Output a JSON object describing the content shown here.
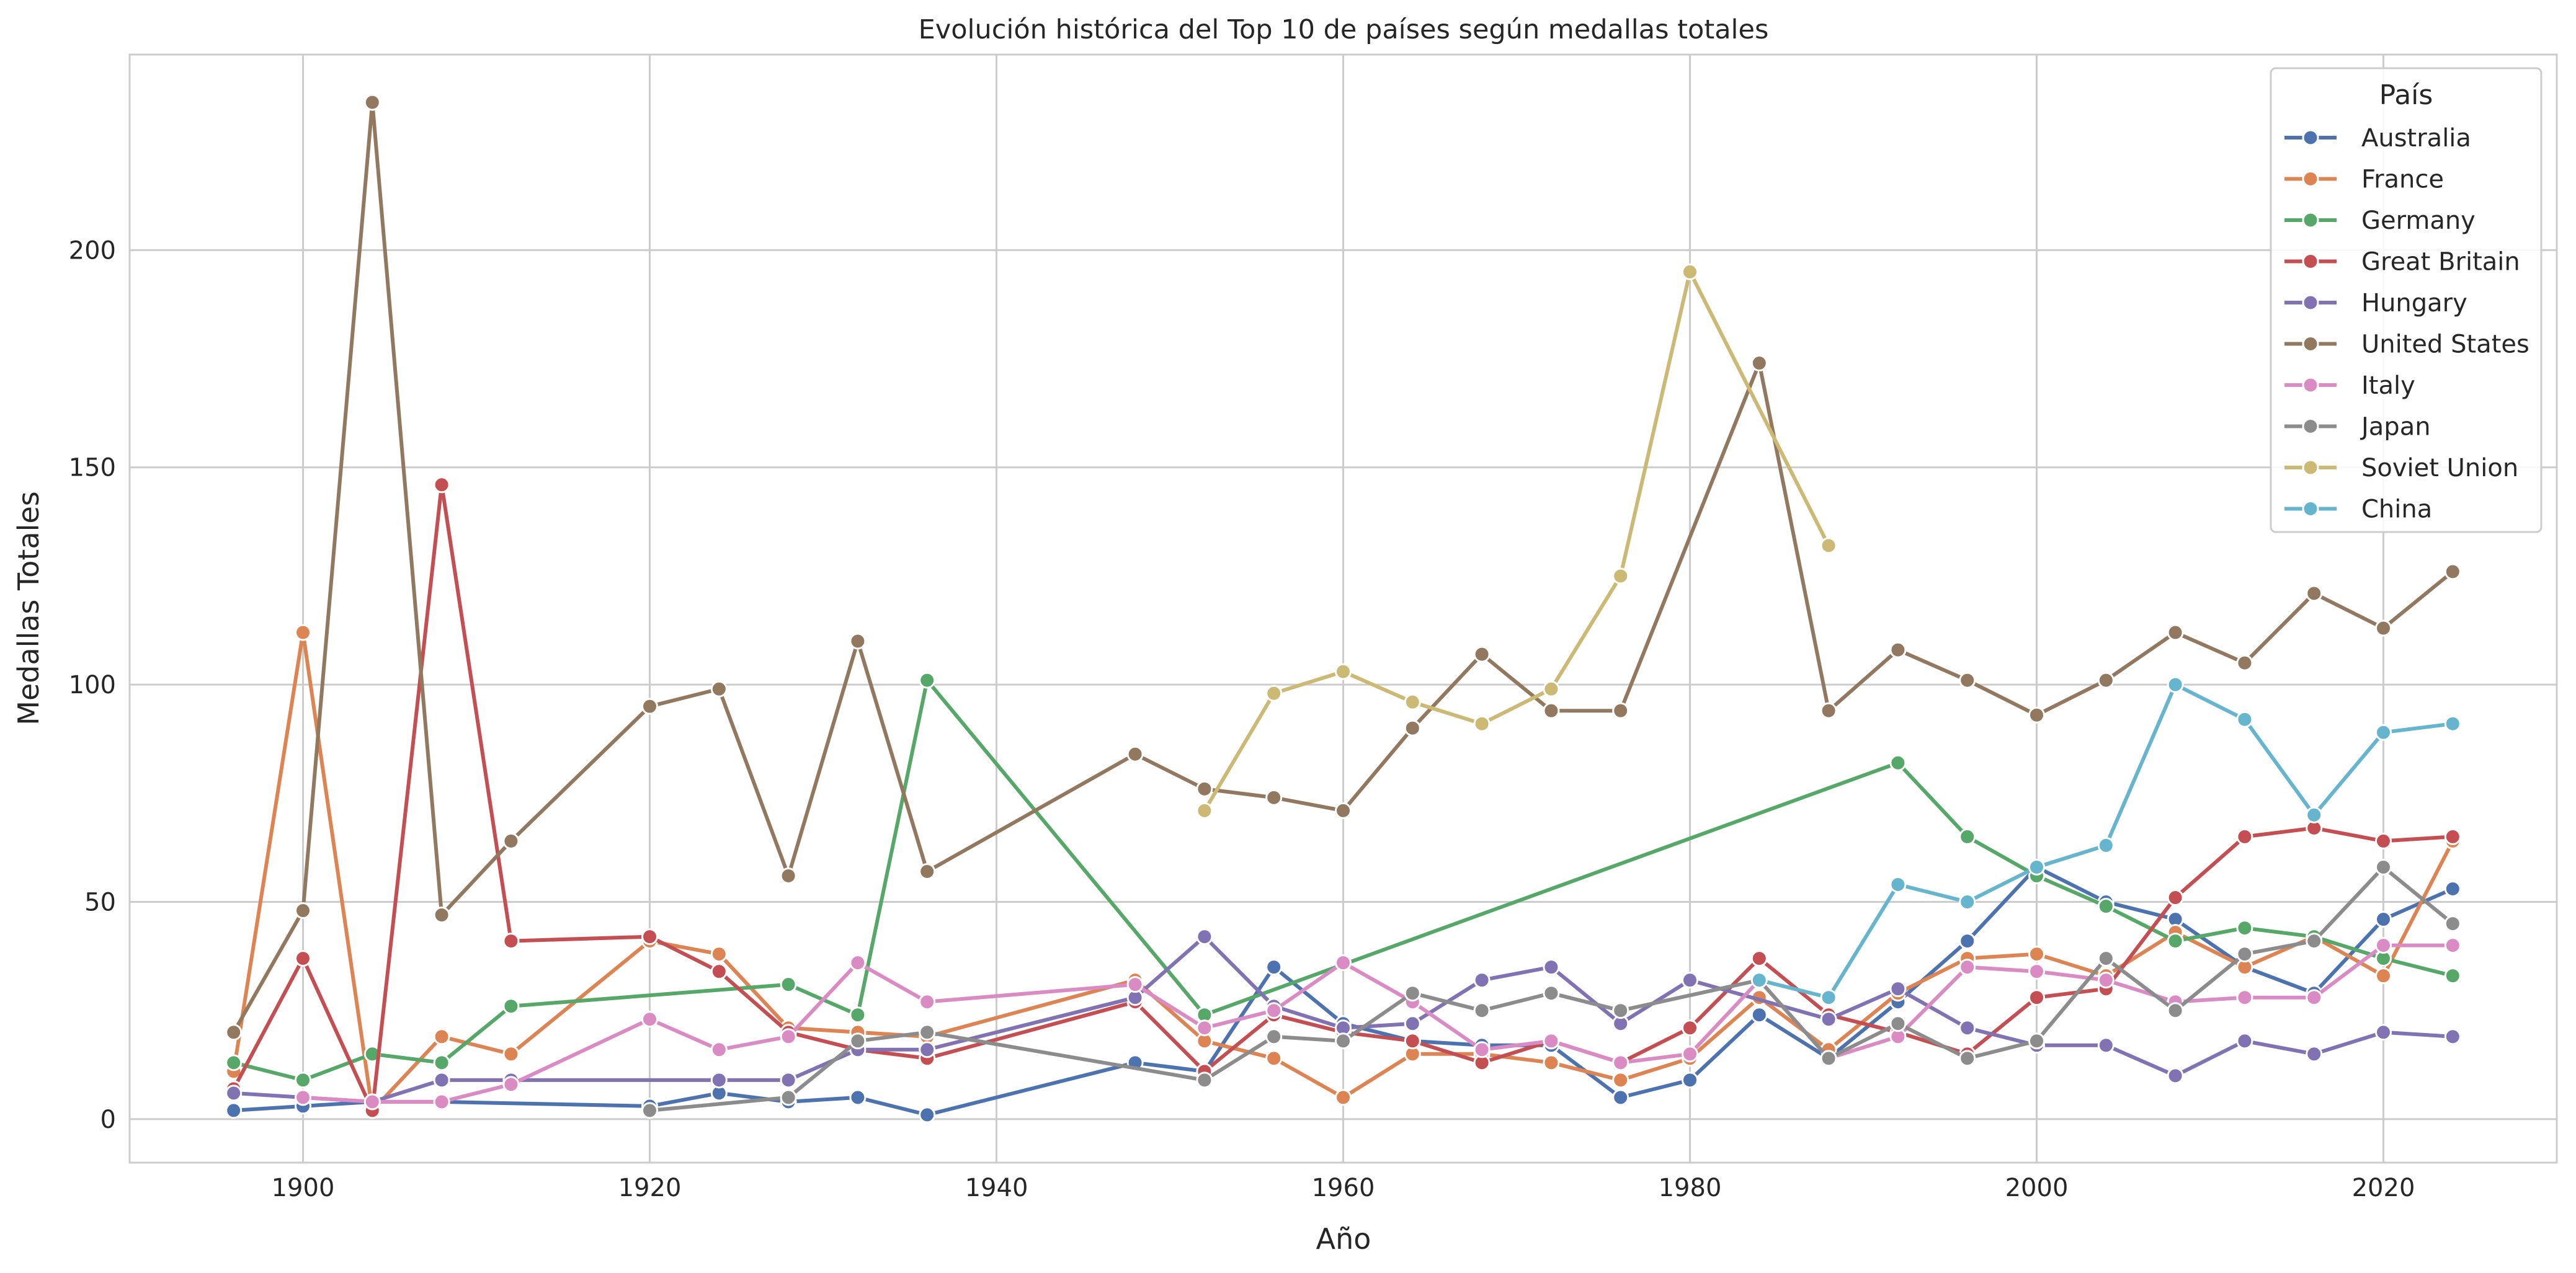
{
  "chart_data": {
    "type": "line",
    "title": "Evolución histórica del Top 10 de países según medallas totales",
    "xlabel": "Año",
    "ylabel": "Medallas Totales",
    "xlim": [
      1890,
      2030
    ],
    "ylim": [
      -10,
      245
    ],
    "xticks": [
      1900,
      1920,
      1940,
      1960,
      1980,
      2000,
      2020
    ],
    "yticks": [
      0,
      50,
      100,
      150,
      200
    ],
    "grid": true,
    "legend_title": "País",
    "legend_position": "top-right",
    "series": [
      {
        "name": "Australia",
        "color": "#4c72b0",
        "points": [
          [
            1896,
            2
          ],
          [
            1900,
            3
          ],
          [
            1904,
            4
          ],
          [
            1908,
            4
          ],
          [
            1920,
            3
          ],
          [
            1924,
            6
          ],
          [
            1928,
            4
          ],
          [
            1932,
            5
          ],
          [
            1936,
            1
          ],
          [
            1948,
            13
          ],
          [
            1952,
            11
          ],
          [
            1956,
            35
          ],
          [
            1960,
            22
          ],
          [
            1964,
            18
          ],
          [
            1968,
            17
          ],
          [
            1972,
            17
          ],
          [
            1976,
            5
          ],
          [
            1980,
            9
          ],
          [
            1984,
            24
          ],
          [
            1988,
            14
          ],
          [
            1992,
            27
          ],
          [
            1996,
            41
          ],
          [
            2000,
            58
          ],
          [
            2004,
            50
          ],
          [
            2008,
            46
          ],
          [
            2012,
            35
          ],
          [
            2016,
            29
          ],
          [
            2020,
            46
          ],
          [
            2024,
            53
          ]
        ]
      },
      {
        "name": "France",
        "color": "#dd8452",
        "points": [
          [
            1896,
            11
          ],
          [
            1900,
            112
          ],
          [
            1904,
            2
          ],
          [
            1908,
            19
          ],
          [
            1912,
            15
          ],
          [
            1920,
            41
          ],
          [
            1924,
            38
          ],
          [
            1928,
            21
          ],
          [
            1932,
            20
          ],
          [
            1936,
            19
          ],
          [
            1948,
            32
          ],
          [
            1952,
            18
          ],
          [
            1956,
            14
          ],
          [
            1960,
            5
          ],
          [
            1964,
            15
          ],
          [
            1968,
            15
          ],
          [
            1972,
            13
          ],
          [
            1976,
            9
          ],
          [
            1980,
            14
          ],
          [
            1984,
            28
          ],
          [
            1988,
            16
          ],
          [
            1992,
            29
          ],
          [
            1996,
            37
          ],
          [
            2000,
            38
          ],
          [
            2004,
            33
          ],
          [
            2008,
            43
          ],
          [
            2012,
            35
          ],
          [
            2016,
            42
          ],
          [
            2020,
            33
          ],
          [
            2024,
            64
          ]
        ]
      },
      {
        "name": "Germany",
        "color": "#55a868",
        "points": [
          [
            1896,
            13
          ],
          [
            1900,
            9
          ],
          [
            1904,
            15
          ],
          [
            1908,
            13
          ],
          [
            1912,
            26
          ],
          [
            1928,
            31
          ],
          [
            1932,
            24
          ],
          [
            1936,
            101
          ],
          [
            1952,
            24
          ],
          [
            1992,
            82
          ],
          [
            1996,
            65
          ],
          [
            2000,
            56
          ],
          [
            2004,
            49
          ],
          [
            2008,
            41
          ],
          [
            2012,
            44
          ],
          [
            2016,
            42
          ],
          [
            2020,
            37
          ],
          [
            2024,
            33
          ]
        ]
      },
      {
        "name": "Great Britain",
        "color": "#c44e52",
        "points": [
          [
            1896,
            7
          ],
          [
            1900,
            37
          ],
          [
            1904,
            2
          ],
          [
            1908,
            146
          ],
          [
            1912,
            41
          ],
          [
            1920,
            42
          ],
          [
            1924,
            34
          ],
          [
            1928,
            20
          ],
          [
            1932,
            16
          ],
          [
            1936,
            14
          ],
          [
            1948,
            27
          ],
          [
            1952,
            11
          ],
          [
            1956,
            24
          ],
          [
            1960,
            20
          ],
          [
            1964,
            18
          ],
          [
            1968,
            13
          ],
          [
            1972,
            18
          ],
          [
            1976,
            13
          ],
          [
            1980,
            21
          ],
          [
            1984,
            37
          ],
          [
            1988,
            24
          ],
          [
            1992,
            20
          ],
          [
            1996,
            15
          ],
          [
            2000,
            28
          ],
          [
            2004,
            30
          ],
          [
            2008,
            51
          ],
          [
            2012,
            65
          ],
          [
            2016,
            67
          ],
          [
            2020,
            64
          ],
          [
            2024,
            65
          ]
        ]
      },
      {
        "name": "Hungary",
        "color": "#8172b3",
        "points": [
          [
            1896,
            6
          ],
          [
            1900,
            5
          ],
          [
            1904,
            4
          ],
          [
            1908,
            9
          ],
          [
            1912,
            9
          ],
          [
            1924,
            9
          ],
          [
            1928,
            9
          ],
          [
            1932,
            16
          ],
          [
            1936,
            16
          ],
          [
            1948,
            28
          ],
          [
            1952,
            42
          ],
          [
            1956,
            26
          ],
          [
            1960,
            21
          ],
          [
            1964,
            22
          ],
          [
            1968,
            32
          ],
          [
            1972,
            35
          ],
          [
            1976,
            22
          ],
          [
            1980,
            32
          ],
          [
            1988,
            23
          ],
          [
            1992,
            30
          ],
          [
            1996,
            21
          ],
          [
            2000,
            17
          ],
          [
            2004,
            17
          ],
          [
            2008,
            10
          ],
          [
            2012,
            18
          ],
          [
            2016,
            15
          ],
          [
            2020,
            20
          ],
          [
            2024,
            19
          ]
        ]
      },
      {
        "name": "United States",
        "color": "#937860",
        "points": [
          [
            1896,
            20
          ],
          [
            1900,
            48
          ],
          [
            1904,
            234
          ],
          [
            1908,
            47
          ],
          [
            1912,
            64
          ],
          [
            1920,
            95
          ],
          [
            1924,
            99
          ],
          [
            1928,
            56
          ],
          [
            1932,
            110
          ],
          [
            1936,
            57
          ],
          [
            1948,
            84
          ],
          [
            1952,
            76
          ],
          [
            1956,
            74
          ],
          [
            1960,
            71
          ],
          [
            1964,
            90
          ],
          [
            1968,
            107
          ],
          [
            1972,
            94
          ],
          [
            1976,
            94
          ],
          [
            1984,
            174
          ],
          [
            1988,
            94
          ],
          [
            1992,
            108
          ],
          [
            1996,
            101
          ],
          [
            2000,
            93
          ],
          [
            2004,
            101
          ],
          [
            2008,
            112
          ],
          [
            2012,
            105
          ],
          [
            2016,
            121
          ],
          [
            2020,
            113
          ],
          [
            2024,
            126
          ]
        ]
      },
      {
        "name": "Italy",
        "color": "#da8bc3",
        "points": [
          [
            1900,
            5
          ],
          [
            1904,
            4
          ],
          [
            1908,
            4
          ],
          [
            1912,
            8
          ],
          [
            1920,
            23
          ],
          [
            1924,
            16
          ],
          [
            1928,
            19
          ],
          [
            1932,
            36
          ],
          [
            1936,
            27
          ],
          [
            1948,
            31
          ],
          [
            1952,
            21
          ],
          [
            1956,
            25
          ],
          [
            1960,
            36
          ],
          [
            1964,
            27
          ],
          [
            1968,
            16
          ],
          [
            1972,
            18
          ],
          [
            1976,
            13
          ],
          [
            1980,
            15
          ],
          [
            1984,
            32
          ],
          [
            1988,
            14
          ],
          [
            1992,
            19
          ],
          [
            1996,
            35
          ],
          [
            2000,
            34
          ],
          [
            2004,
            32
          ],
          [
            2008,
            27
          ],
          [
            2012,
            28
          ],
          [
            2016,
            28
          ],
          [
            2020,
            40
          ],
          [
            2024,
            40
          ]
        ]
      },
      {
        "name": "Japan",
        "color": "#8c8c8c",
        "points": [
          [
            1920,
            2
          ],
          [
            1928,
            5
          ],
          [
            1932,
            18
          ],
          [
            1936,
            20
          ],
          [
            1952,
            9
          ],
          [
            1956,
            19
          ],
          [
            1960,
            18
          ],
          [
            1964,
            29
          ],
          [
            1968,
            25
          ],
          [
            1972,
            29
          ],
          [
            1976,
            25
          ],
          [
            1984,
            32
          ],
          [
            1988,
            14
          ],
          [
            1992,
            22
          ],
          [
            1996,
            14
          ],
          [
            2000,
            18
          ],
          [
            2004,
            37
          ],
          [
            2008,
            25
          ],
          [
            2012,
            38
          ],
          [
            2016,
            41
          ],
          [
            2020,
            58
          ],
          [
            2024,
            45
          ]
        ]
      },
      {
        "name": "Soviet Union",
        "color": "#ccb974",
        "points": [
          [
            1952,
            71
          ],
          [
            1956,
            98
          ],
          [
            1960,
            103
          ],
          [
            1964,
            96
          ],
          [
            1968,
            91
          ],
          [
            1972,
            99
          ],
          [
            1976,
            125
          ],
          [
            1980,
            195
          ],
          [
            1988,
            132
          ]
        ]
      },
      {
        "name": "China",
        "color": "#64b5cd",
        "points": [
          [
            1984,
            32
          ],
          [
            1988,
            28
          ],
          [
            1992,
            54
          ],
          [
            1996,
            50
          ],
          [
            2000,
            58
          ],
          [
            2004,
            63
          ],
          [
            2008,
            100
          ],
          [
            2012,
            92
          ],
          [
            2016,
            70
          ],
          [
            2020,
            89
          ],
          [
            2024,
            91
          ]
        ]
      }
    ]
  }
}
